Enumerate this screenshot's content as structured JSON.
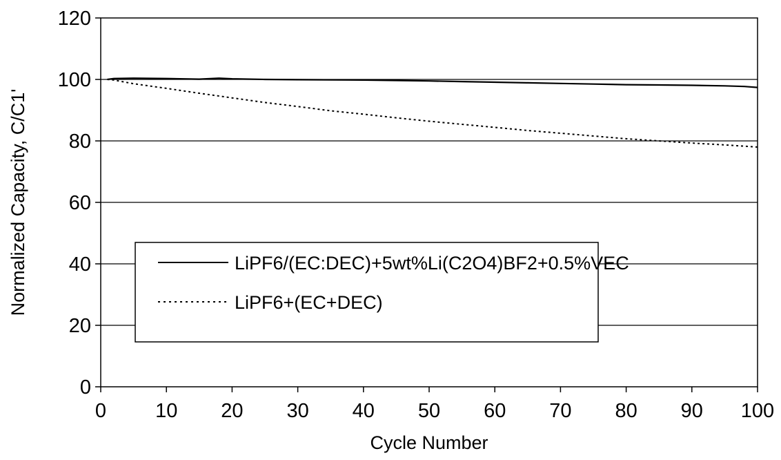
{
  "chart_data": {
    "type": "line",
    "title": "",
    "xlabel": "Cycle Number",
    "ylabel": "Normalized Capacity, C/C1'",
    "xlim": [
      0,
      100
    ],
    "ylim": [
      0,
      120
    ],
    "xticks": [
      0,
      10,
      20,
      30,
      40,
      50,
      60,
      70,
      80,
      90,
      100
    ],
    "yticks": [
      0,
      20,
      40,
      60,
      80,
      100,
      120
    ],
    "grid": "horizontal",
    "legend_position": "center-left",
    "series": [
      {
        "name": "LiPF6/(EC:DEC)+5wt%Li(C2O4)BF2+0.5%VEC",
        "style": "solid",
        "color": "#000000",
        "x": [
          1,
          2,
          5,
          10,
          15,
          18,
          20,
          25,
          30,
          40,
          50,
          55,
          60,
          65,
          70,
          75,
          80,
          85,
          90,
          95,
          98,
          100
        ],
        "y": [
          100,
          100.3,
          100.4,
          100.3,
          100.1,
          100.4,
          100.2,
          100.0,
          99.9,
          99.8,
          99.5,
          99.3,
          99.1,
          98.9,
          98.7,
          98.5,
          98.3,
          98.2,
          98.1,
          97.9,
          97.7,
          97.4
        ]
      },
      {
        "name": "LiPF6+(EC+DEC)",
        "style": "dotted",
        "color": "#000000",
        "x": [
          1,
          2,
          5,
          10,
          15,
          20,
          25,
          30,
          35,
          40,
          45,
          50,
          55,
          60,
          65,
          70,
          75,
          80,
          85,
          90,
          95,
          100
        ],
        "y": [
          100,
          99.8,
          98.6,
          97.1,
          95.5,
          94.0,
          92.5,
          91.2,
          89.8,
          88.7,
          87.5,
          86.4,
          85.4,
          84.4,
          83.4,
          82.5,
          81.6,
          80.7,
          80.0,
          79.3,
          78.7,
          78.0
        ]
      }
    ]
  }
}
